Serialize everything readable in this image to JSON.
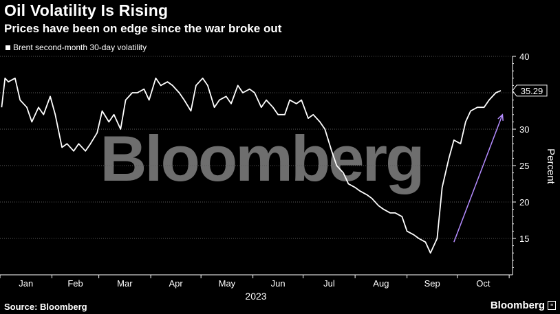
{
  "header": {
    "title": "Oil Volatility Is Rising",
    "subtitle": "Prices have been on edge since the war broke out"
  },
  "legend": {
    "label": "Brent second-month 30-day volatility"
  },
  "watermark": "Bloomberg",
  "footer": {
    "source": "Source: Bloomberg",
    "brand": "Bloomberg"
  },
  "colors": {
    "background": "#000000",
    "line": "#ffffff",
    "arrow": "#b48cff",
    "grid": "#5a5a5a",
    "watermark": "#6e6e6e"
  },
  "chart_data": {
    "type": "line",
    "title": "Oil Volatility Is Rising",
    "subtitle": "Prices have been on edge since the war broke out",
    "xlabel": "2023",
    "ylabel": "Percent",
    "ylim": [
      10,
      40
    ],
    "yticks": [
      15,
      20,
      25,
      30,
      35,
      40
    ],
    "x_month_labels": [
      "Jan",
      "Feb",
      "Mar",
      "Apr",
      "May",
      "Jun",
      "Jul",
      "Aug",
      "Sep",
      "Oct"
    ],
    "grid": true,
    "legend_position": "top-left",
    "last_value_label": "35.29",
    "series": [
      {
        "name": "Brent second-month 30-day volatility",
        "x": [
          "2023-01-02",
          "2023-01-04",
          "2023-01-06",
          "2023-01-10",
          "2023-01-13",
          "2023-01-17",
          "2023-01-20",
          "2023-01-24",
          "2023-01-27",
          "2023-01-31",
          "2023-02-03",
          "2023-02-07",
          "2023-02-10",
          "2023-02-14",
          "2023-02-17",
          "2023-02-21",
          "2023-02-24",
          "2023-02-28",
          "2023-03-03",
          "2023-03-07",
          "2023-03-10",
          "2023-03-14",
          "2023-03-17",
          "2023-03-21",
          "2023-03-24",
          "2023-03-28",
          "2023-03-31",
          "2023-04-04",
          "2023-04-07",
          "2023-04-11",
          "2023-04-14",
          "2023-04-18",
          "2023-04-21",
          "2023-04-25",
          "2023-04-28",
          "2023-05-02",
          "2023-05-05",
          "2023-05-09",
          "2023-05-12",
          "2023-05-16",
          "2023-05-19",
          "2023-05-23",
          "2023-05-26",
          "2023-05-30",
          "2023-06-02",
          "2023-06-06",
          "2023-06-09",
          "2023-06-13",
          "2023-06-16",
          "2023-06-20",
          "2023-06-23",
          "2023-06-27",
          "2023-06-30",
          "2023-07-04",
          "2023-07-07",
          "2023-07-11",
          "2023-07-14",
          "2023-07-18",
          "2023-07-21",
          "2023-07-25",
          "2023-07-28",
          "2023-08-01",
          "2023-08-04",
          "2023-08-08",
          "2023-08-11",
          "2023-08-15",
          "2023-08-18",
          "2023-08-22",
          "2023-08-25",
          "2023-08-29",
          "2023-09-01",
          "2023-09-05",
          "2023-09-08",
          "2023-09-12",
          "2023-09-15",
          "2023-09-19",
          "2023-09-22",
          "2023-09-26",
          "2023-09-29",
          "2023-10-03",
          "2023-10-06",
          "2023-10-09",
          "2023-10-13",
          "2023-10-17",
          "2023-10-20",
          "2023-10-24",
          "2023-10-27"
        ],
        "values": [
          33,
          37,
          36.5,
          37,
          34,
          33,
          31,
          33,
          32,
          34.5,
          32,
          27.5,
          28,
          27,
          28,
          27,
          28,
          29.5,
          32.5,
          31,
          32,
          30,
          34,
          35,
          35,
          35.5,
          34,
          37,
          36,
          36.5,
          36,
          35,
          34,
          32.5,
          36,
          37,
          36,
          33,
          34,
          34.5,
          33.5,
          36,
          35,
          35.5,
          35,
          33,
          34,
          33,
          32,
          32,
          34,
          33.5,
          34,
          31.5,
          32,
          31,
          30,
          27,
          25,
          24,
          22.5,
          22,
          21.5,
          21,
          20.5,
          19.5,
          19,
          18.5,
          18.5,
          18,
          16,
          15.5,
          15,
          14.5,
          13,
          15,
          22,
          26,
          28.5,
          28,
          31,
          32.5,
          33,
          33,
          34,
          35,
          35.29
        ]
      }
    ],
    "annotations": [
      {
        "type": "arrow",
        "from": {
          "x": "2023-09-29",
          "y": 14.5
        },
        "to": {
          "x": "2023-10-28",
          "y": 32
        }
      }
    ]
  }
}
